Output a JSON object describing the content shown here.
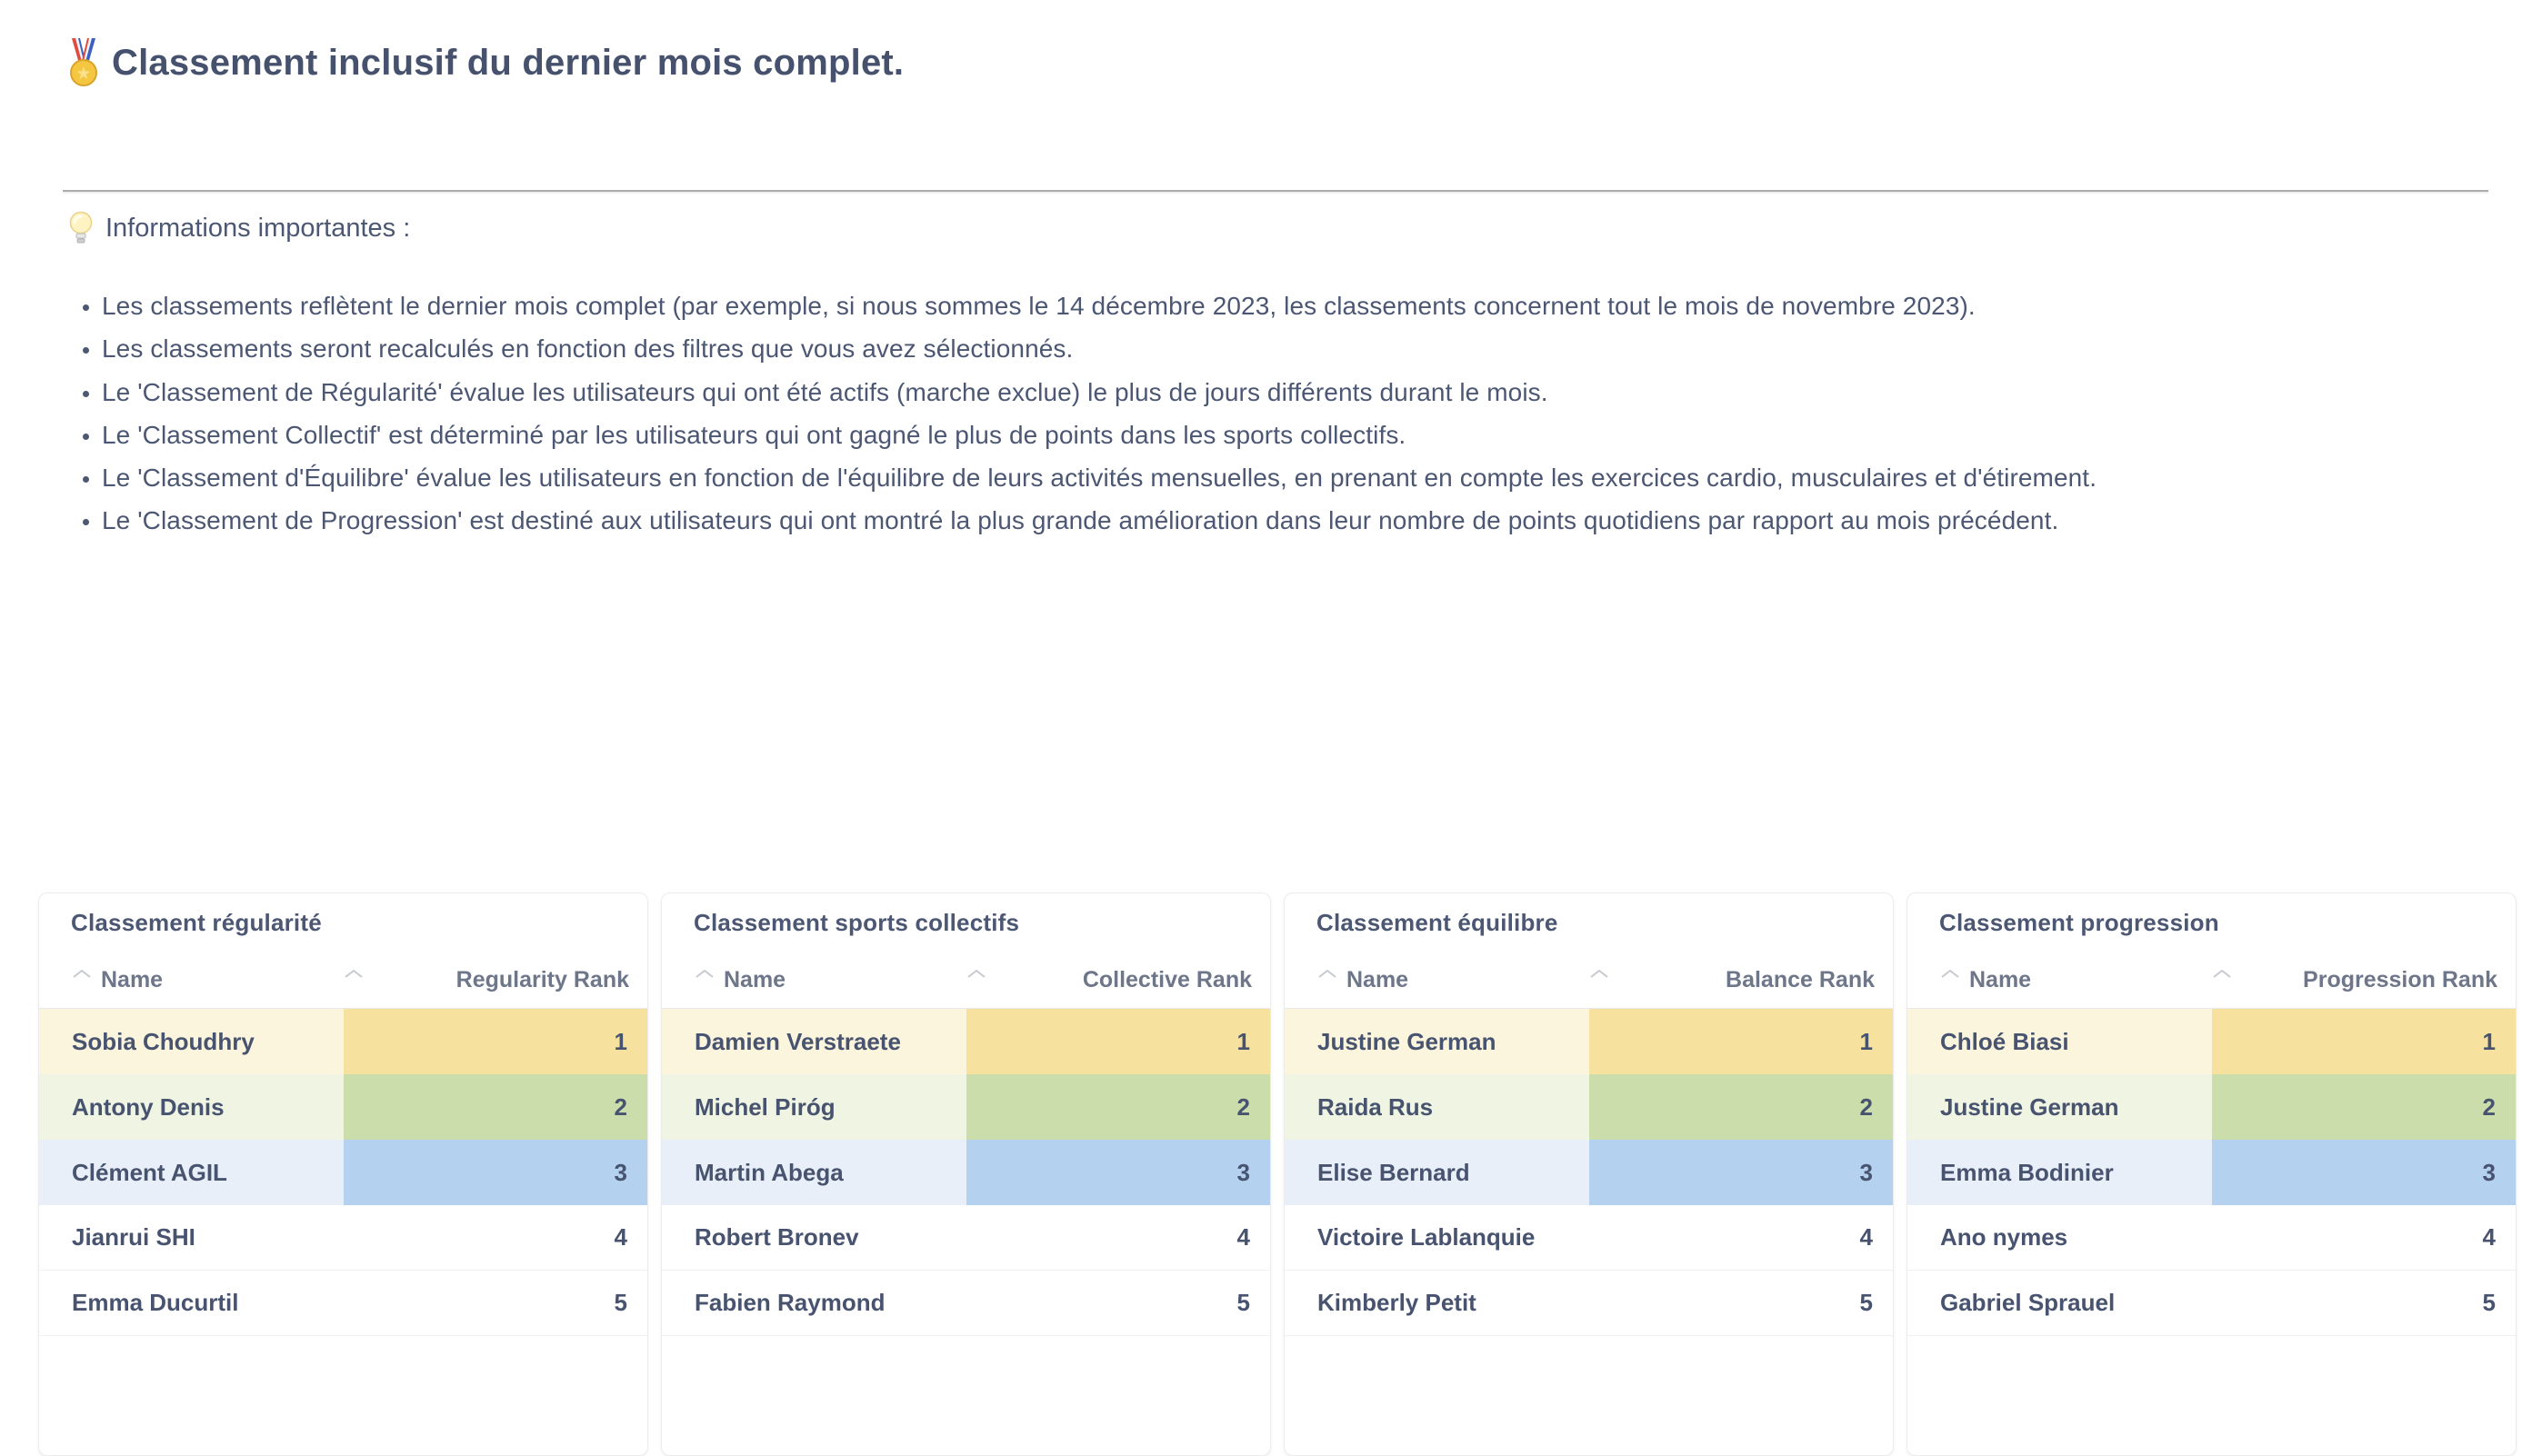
{
  "page_title": {
    "icon": "medal-icon",
    "text": "Classement inclusif du dernier mois complet."
  },
  "info": {
    "icon": "lightbulb-icon",
    "heading": "Informations importantes :",
    "bullets": [
      "Les classements reflètent le dernier mois complet (par exemple, si nous sommes le 14 décembre 2023, les classements concernent tout le mois de novembre 2023).",
      "Les classements seront recalculés en fonction des filtres que vous avez sélectionnés.",
      "Le 'Classement de Régularité' évalue les utilisateurs qui ont été actifs (marche exclue) le plus de jours différents durant le mois.",
      "Le 'Classement Collectif' est déterminé par les utilisateurs qui ont gagné le plus de points dans les sports collectifs.",
      "Le 'Classement d'Équilibre' évalue les utilisateurs en fonction de l'équilibre de leurs activités mensuelles, en prenant en compte les exercices cardio, musculaires et d'étirement.",
      "Le 'Classement de Progression' est destiné aux utilisateurs qui ont montré la plus grande amélioration dans leur nombre de points quotidiens par rapport au mois précédent."
    ]
  },
  "colors": {
    "text_dark": "#4C5773",
    "header_text": "#6E7689",
    "sort_caret": "#C7CAD1",
    "rank1_name_bg": "#FCF5DE",
    "rank1_value_bg": "#F6E19E",
    "rank2_name_bg": "#EFF4E3",
    "rank2_value_bg": "#CBDDAA",
    "rank3_name_bg": "#E8EFF9",
    "rank3_value_bg": "#B4D1EF"
  },
  "cards": [
    {
      "title": "Classement régularité",
      "columns": [
        "Name",
        "Regularity Rank"
      ],
      "rows": [
        {
          "name": "Sobia Choudhry",
          "rank": "1"
        },
        {
          "name": "Antony Denis",
          "rank": "2"
        },
        {
          "name": "Clément AGIL",
          "rank": "3"
        },
        {
          "name": "Jianrui SHI",
          "rank": "4"
        },
        {
          "name": "Emma Ducurtil",
          "rank": "5"
        }
      ]
    },
    {
      "title": "Classement sports collectifs",
      "columns": [
        "Name",
        "Collective Rank"
      ],
      "rows": [
        {
          "name": "Damien Verstraete",
          "rank": "1"
        },
        {
          "name": "Michel Piróg",
          "rank": "2"
        },
        {
          "name": "Martin Abega",
          "rank": "3"
        },
        {
          "name": "Robert Bronev",
          "rank": "4"
        },
        {
          "name": "Fabien Raymond",
          "rank": "5"
        }
      ]
    },
    {
      "title": "Classement équilibre",
      "columns": [
        "Name",
        "Balance Rank"
      ],
      "rows": [
        {
          "name": "Justine German",
          "rank": "1"
        },
        {
          "name": "Raida Rus",
          "rank": "2"
        },
        {
          "name": "Elise Bernard",
          "rank": "3"
        },
        {
          "name": "Victoire Lablanquie",
          "rank": "4"
        },
        {
          "name": "Kimberly Petit",
          "rank": "5"
        }
      ]
    },
    {
      "title": "Classement progression",
      "columns": [
        "Name",
        "Progression Rank"
      ],
      "rows": [
        {
          "name": "Chloé Biasi",
          "rank": "1"
        },
        {
          "name": "Justine German",
          "rank": "2"
        },
        {
          "name": "Emma Bodinier",
          "rank": "3"
        },
        {
          "name": "Ano nymes",
          "rank": "4"
        },
        {
          "name": "Gabriel Sprauel",
          "rank": "5"
        }
      ]
    }
  ]
}
